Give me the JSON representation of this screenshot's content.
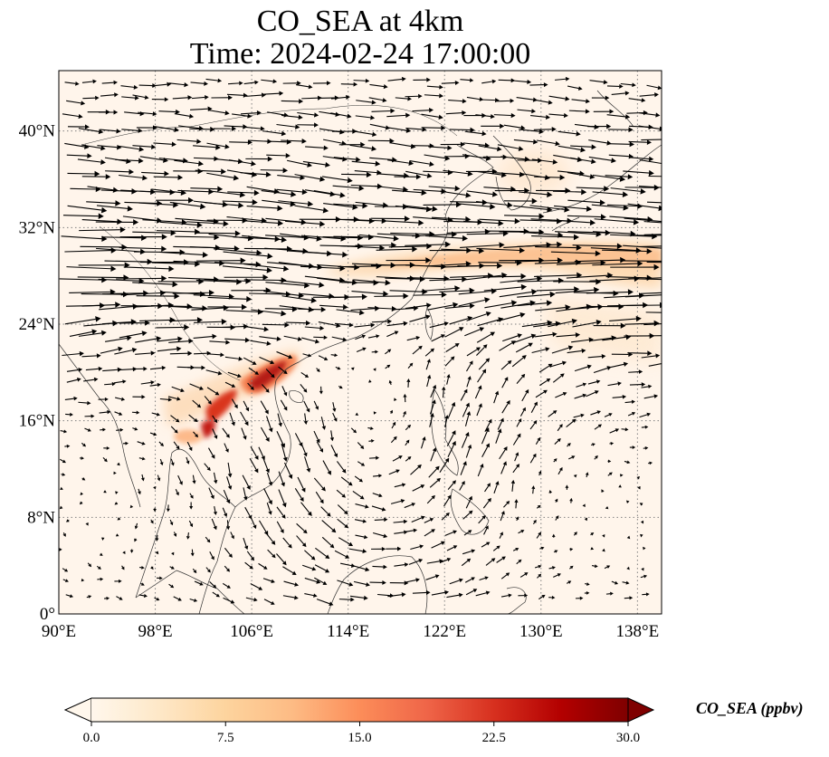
{
  "title": {
    "line1": "CO_SEA at 4km",
    "line2": "Time: 2024-02-24 17:00:00"
  },
  "map": {
    "lon_range": [
      90,
      140
    ],
    "lat_range": [
      0,
      45
    ],
    "lon_ticks": [
      "90°E",
      "98°E",
      "106°E",
      "114°E",
      "122°E",
      "130°E",
      "138°E"
    ],
    "lon_values": [
      90,
      98,
      106,
      114,
      122,
      130,
      138
    ],
    "lat_ticks": [
      "0°",
      "8°N",
      "16°N",
      "24°N",
      "32°N",
      "40°N"
    ],
    "lat_values": [
      0,
      8,
      16,
      24,
      32,
      40
    ],
    "gridlines": "dotted",
    "background_color": "#fff5eb",
    "plume_features": [
      {
        "name": "northern-vietnam-plume",
        "lon": 107.5,
        "lat": 19.5,
        "value": 28
      },
      {
        "name": "laos-plume",
        "lon": 103.5,
        "lat": 17.0,
        "value": 24
      },
      {
        "name": "thailand-plume",
        "lon": 102.0,
        "lat": 15.0,
        "value": 20
      },
      {
        "name": "west-thailand-plume",
        "lon": 100.0,
        "lat": 14.5,
        "value": 12
      },
      {
        "name": "east-china-band",
        "lon": 123.0,
        "lat": 29.5,
        "value": 10
      },
      {
        "name": "pacific-band",
        "lon": 134.0,
        "lat": 30.0,
        "value": 9
      }
    ],
    "wind_vectors": "quiver arrows; strong westerly jet near 25-32°N"
  },
  "colorbar": {
    "label": "CO_SEA (ppbv)",
    "ticks": [
      "0.0",
      "7.5",
      "15.0",
      "22.5",
      "30.0"
    ],
    "min": 0,
    "max": 30,
    "extend": "both",
    "colormap": "OrRd",
    "colors": [
      "#fff7ec",
      "#fee8c8",
      "#fdd49e",
      "#fdbb84",
      "#fc8d59",
      "#ef6548",
      "#d7301f",
      "#b30000",
      "#7f0000"
    ]
  }
}
